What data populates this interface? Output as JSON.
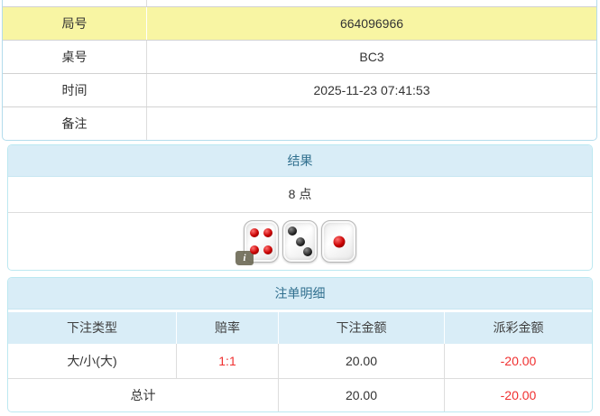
{
  "info_table": {
    "rows": [
      {
        "label": "局号",
        "value": "664096966"
      },
      {
        "label": "桌号",
        "value": "BC3"
      },
      {
        "label": "时间",
        "value": "2025-11-23 07:41:53"
      },
      {
        "label": "备注",
        "value": ""
      }
    ]
  },
  "result_panel": {
    "title": "结果",
    "points": "8 点",
    "dice": [
      {
        "value": 4,
        "color": "red"
      },
      {
        "value": 3,
        "color": "black"
      },
      {
        "value": 1,
        "color": "red"
      }
    ],
    "info_badge": "i"
  },
  "bets_panel": {
    "title": "注单明细",
    "headers": [
      "下注类型",
      "赔率",
      "下注金额",
      "派彩金额"
    ],
    "rows": [
      {
        "type": "大/小(大)",
        "odds": "1:1",
        "amount": "20.00",
        "payout": "-20.00"
      }
    ],
    "total": {
      "label": "总计",
      "amount": "20.00",
      "payout": "-20.00"
    }
  },
  "colors": {
    "highlight_row": "#f8f5a3",
    "panel_header_bg": "#d9edf7",
    "panel_header_text": "#31708f",
    "panel_border": "#bce8f1",
    "negative_text": "#f03030"
  }
}
